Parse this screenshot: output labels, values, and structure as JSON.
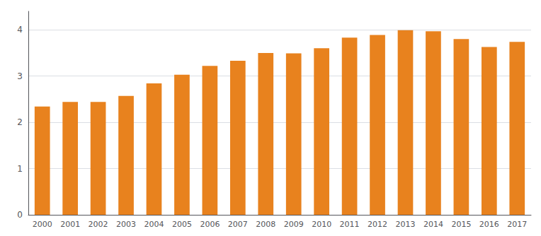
{
  "chart_data": {
    "type": "bar",
    "categories": [
      "2000",
      "2001",
      "2002",
      "2003",
      "2004",
      "2005",
      "2006",
      "2007",
      "2008",
      "2009",
      "2010",
      "2011",
      "2012",
      "2013",
      "2014",
      "2015",
      "2016",
      "2017"
    ],
    "values": [
      2.34,
      2.44,
      2.44,
      2.57,
      2.84,
      3.03,
      3.22,
      3.33,
      3.5,
      3.49,
      3.6,
      3.83,
      3.89,
      3.99,
      3.97,
      3.8,
      3.63,
      3.74
    ],
    "color": "#E8821E",
    "ylim": [
      0,
      4.4
    ],
    "yticks": [
      0,
      1,
      2,
      3,
      4
    ],
    "grid": true
  }
}
